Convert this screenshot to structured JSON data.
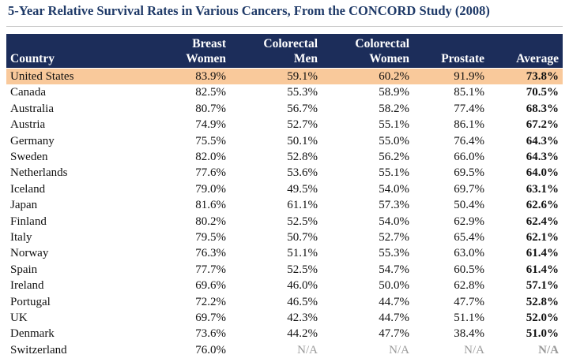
{
  "title": "5-Year Relative Survival Rates in Various Cancers, From the CONCORD Study (2008)",
  "table": {
    "header": [
      [
        "Country"
      ],
      [
        "Breast",
        "Women"
      ],
      [
        "Colorectal",
        "Men"
      ],
      [
        "Colorectal",
        "Women"
      ],
      [
        "Prostate"
      ],
      [
        "Average"
      ]
    ],
    "rows": [
      [
        "United States",
        "83.9%",
        "59.1%",
        "60.2%",
        "91.9%",
        "73.8%"
      ],
      [
        "Canada",
        "82.5%",
        "55.3%",
        "58.9%",
        "85.1%",
        "70.5%"
      ],
      [
        "Australia",
        "80.7%",
        "56.7%",
        "58.2%",
        "77.4%",
        "68.3%"
      ],
      [
        "Austria",
        "74.9%",
        "52.7%",
        "55.1%",
        "86.1%",
        "67.2%"
      ],
      [
        "Germany",
        "75.5%",
        "50.1%",
        "55.0%",
        "76.4%",
        "64.3%"
      ],
      [
        "Sweden",
        "82.0%",
        "52.8%",
        "56.2%",
        "66.0%",
        "64.3%"
      ],
      [
        "Netherlands",
        "77.6%",
        "53.6%",
        "55.1%",
        "69.5%",
        "64.0%"
      ],
      [
        "Iceland",
        "79.0%",
        "49.5%",
        "54.0%",
        "69.7%",
        "63.1%"
      ],
      [
        "Japan",
        "81.6%",
        "61.1%",
        "57.3%",
        "50.4%",
        "62.6%"
      ],
      [
        "Finland",
        "80.2%",
        "52.5%",
        "54.0%",
        "62.9%",
        "62.4%"
      ],
      [
        "Italy",
        "79.5%",
        "50.7%",
        "52.7%",
        "65.4%",
        "62.1%"
      ],
      [
        "Norway",
        "76.3%",
        "51.1%",
        "55.3%",
        "63.0%",
        "61.4%"
      ],
      [
        "Spain",
        "77.7%",
        "52.5%",
        "54.7%",
        "60.5%",
        "61.4%"
      ],
      [
        "Ireland",
        "69.6%",
        "46.0%",
        "50.0%",
        "62.8%",
        "57.1%"
      ],
      [
        "Portugal",
        "72.2%",
        "46.5%",
        "44.7%",
        "47.7%",
        "52.8%"
      ],
      [
        "UK",
        "69.7%",
        "42.3%",
        "44.7%",
        "51.1%",
        "52.0%"
      ],
      [
        "Denmark",
        "73.6%",
        "44.2%",
        "47.7%",
        "38.4%",
        "51.0%"
      ],
      [
        "Switzerland",
        "76.0%",
        "N/A",
        "N/A",
        "N/A",
        "N/A"
      ]
    ]
  }
}
